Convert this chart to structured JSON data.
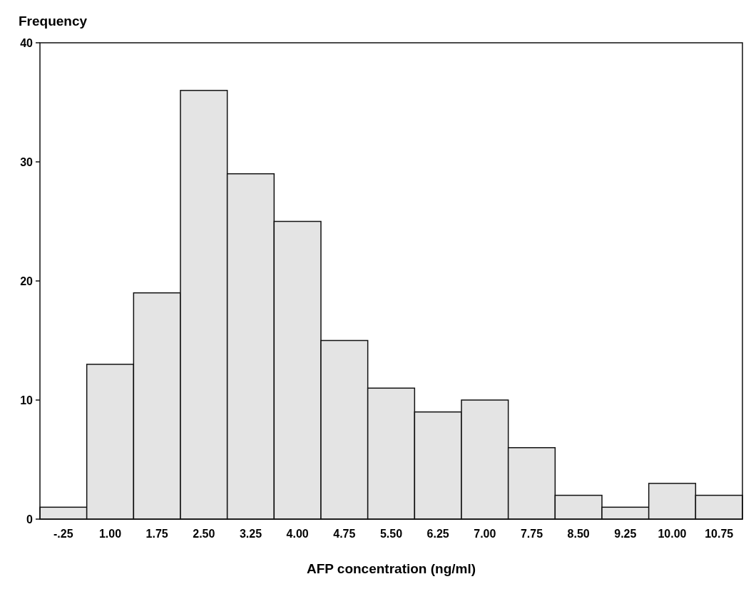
{
  "chart_data": {
    "type": "bar",
    "ylabel": "Frequency",
    "xlabel": "AFP concentration (ng/ml)",
    "categories": [
      "-.25",
      "1.00",
      "1.75",
      "2.50",
      "3.25",
      "4.00",
      "4.75",
      "5.50",
      "6.25",
      "7.00",
      "7.75",
      "8.50",
      "9.25",
      "10.00",
      "10.75"
    ],
    "values": [
      1,
      13,
      19,
      36,
      29,
      25,
      15,
      11,
      9,
      10,
      6,
      2,
      1,
      3,
      2
    ],
    "color": "#e4e4e4",
    "ylim": [
      0,
      40
    ],
    "yticks": [
      0,
      10,
      20,
      30,
      40
    ]
  }
}
